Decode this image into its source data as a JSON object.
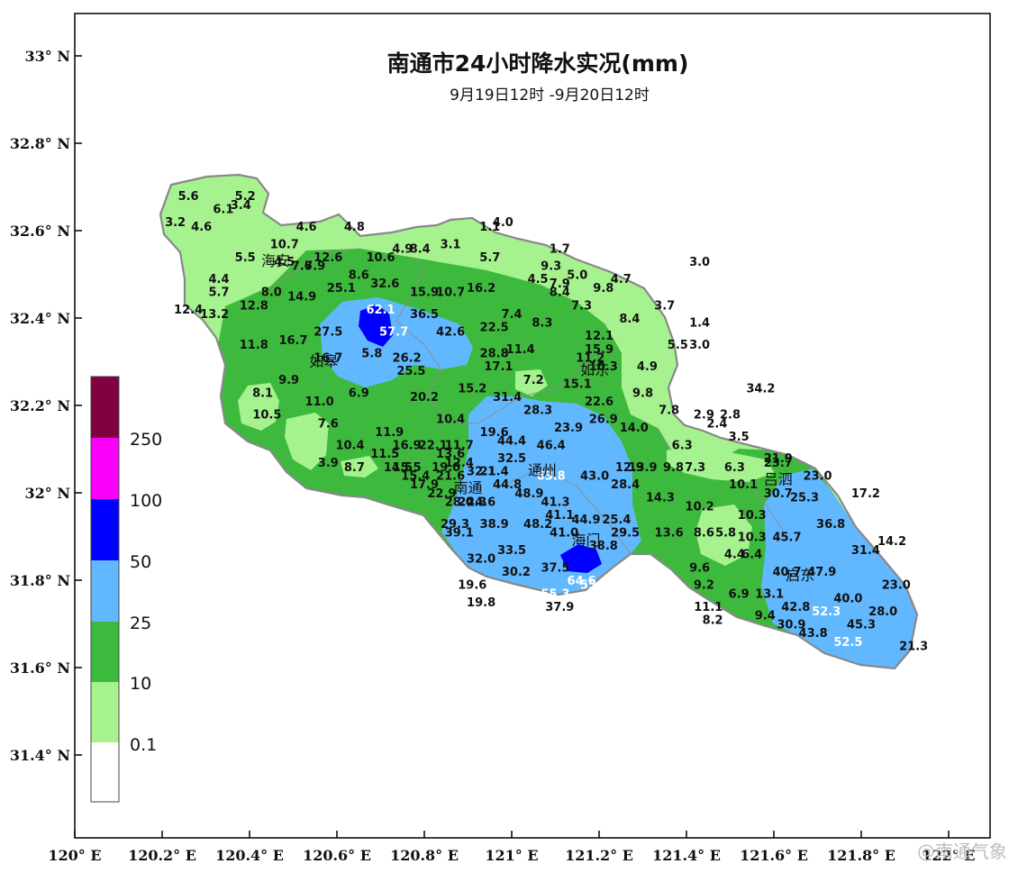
{
  "title": "南通市24小时降水实况(mm)",
  "subtitle": "9月19日12时 -9月20日12时",
  "watermark": "@南通气象",
  "colors": {
    "c0": "#ffffff",
    "c1": "#a6f28f",
    "c2": "#3dba3d",
    "c3": "#61b8ff",
    "c4": "#0000ff",
    "c5": "#fa00fa",
    "c6": "#800040",
    "outline": "#888888"
  },
  "axes": {
    "x_ticks": [
      "120° E",
      "120.2° E",
      "120.4° E",
      "120.6° E",
      "120.8° E",
      "121° E",
      "121.2° E",
      "121.4° E",
      "121.6° E",
      "121.8° E",
      "122° E"
    ],
    "y_ticks": [
      "33° N",
      "32.8° N",
      "32.6° N",
      "32.4° N",
      "32.2° N",
      "32° N",
      "31.8° N",
      "31.6° N",
      "31.4° N"
    ]
  },
  "legend": {
    "labels": [
      "0.1",
      "10",
      "25",
      "50",
      "100",
      "250"
    ]
  },
  "cities": [
    {
      "name": "海安",
      "lon": 120.46,
      "lat": 32.52
    },
    {
      "name": "如皋",
      "lon": 120.57,
      "lat": 32.29
    },
    {
      "name": "如东",
      "lon": 121.19,
      "lat": 32.27
    },
    {
      "name": "通州",
      "lon": 121.07,
      "lat": 32.04
    },
    {
      "name": "南通",
      "lon": 120.9,
      "lat": 32.0
    },
    {
      "name": "海门",
      "lon": 121.17,
      "lat": 31.88
    },
    {
      "name": "吕泗",
      "lon": 121.61,
      "lat": 32.02
    },
    {
      "name": "启东",
      "lon": 121.66,
      "lat": 31.8
    }
  ],
  "stations": [
    [
      "5.6",
      120.26,
      32.67
    ],
    [
      "5.2",
      120.39,
      32.67
    ],
    [
      "3.4",
      120.38,
      32.65
    ],
    [
      "6.1",
      120.34,
      32.64
    ],
    [
      "3.2",
      120.23,
      32.61
    ],
    [
      "4.6",
      120.29,
      32.6
    ],
    [
      "4.6",
      120.53,
      32.6
    ],
    [
      "4.8",
      120.64,
      32.6
    ],
    [
      "4.0",
      120.98,
      32.61
    ],
    [
      "1.1",
      120.95,
      32.6
    ],
    [
      "1.7",
      121.11,
      32.55
    ],
    [
      "3.0",
      121.43,
      32.52
    ],
    [
      "10.7",
      120.48,
      32.56
    ],
    [
      "5.5",
      120.39,
      32.53
    ],
    [
      "4.5",
      120.48,
      32.52
    ],
    [
      "7.6",
      120.52,
      32.51
    ],
    [
      "7.9",
      120.55,
      32.51
    ],
    [
      "12.6",
      120.58,
      32.53
    ],
    [
      "10.6",
      120.7,
      32.53
    ],
    [
      "4.9",
      120.75,
      32.55
    ],
    [
      "8.4",
      120.79,
      32.55
    ],
    [
      "3.1",
      120.86,
      32.56
    ],
    [
      "5.7",
      120.95,
      32.53
    ],
    [
      "9.3",
      121.09,
      32.51
    ],
    [
      "4.4",
      120.33,
      32.48
    ],
    [
      "8.6",
      120.65,
      32.49
    ],
    [
      "5.0",
      121.15,
      32.49
    ],
    [
      "4.5",
      121.06,
      32.48
    ],
    [
      "7.9",
      121.11,
      32.47
    ],
    [
      "9.8",
      121.21,
      32.46
    ],
    [
      "4.7",
      121.25,
      32.48
    ],
    [
      "5.7",
      120.33,
      32.45
    ],
    [
      "8.0",
      120.45,
      32.45
    ],
    [
      "14.9",
      120.52,
      32.44
    ],
    [
      "25.1",
      120.61,
      32.46
    ],
    [
      "32.6",
      120.71,
      32.47
    ],
    [
      "15.9",
      120.8,
      32.45
    ],
    [
      "10.7",
      120.86,
      32.45
    ],
    [
      "16.2",
      120.93,
      32.46
    ],
    [
      "8.4",
      121.11,
      32.45
    ],
    [
      "12.4",
      120.26,
      32.41
    ],
    [
      "13.2",
      120.32,
      32.4
    ],
    [
      "12.8",
      120.41,
      32.42
    ],
    [
      "62.1",
      120.7,
      32.41,
      "w"
    ],
    [
      "36.5",
      120.8,
      32.4
    ],
    [
      "7.4",
      121.0,
      32.4
    ],
    [
      "7.3",
      121.16,
      32.42
    ],
    [
      "3.7",
      121.35,
      32.42
    ],
    [
      "8.3",
      121.07,
      32.38
    ],
    [
      "8.4",
      121.27,
      32.39
    ],
    [
      "1.4",
      121.43,
      32.38
    ],
    [
      "27.5",
      120.58,
      32.36
    ],
    [
      "57.7",
      120.73,
      32.36,
      "w"
    ],
    [
      "42.6",
      120.86,
      32.36
    ],
    [
      "22.5",
      120.96,
      32.37
    ],
    [
      "12.1",
      121.2,
      32.35
    ],
    [
      "11.8",
      120.41,
      32.33
    ],
    [
      "16.7",
      120.5,
      32.34
    ],
    [
      "5.5",
      121.38,
      32.33
    ],
    [
      "3.0",
      121.43,
      32.33
    ],
    [
      "15.9",
      121.2,
      32.32
    ],
    [
      "16.7",
      120.58,
      32.3
    ],
    [
      "5.8",
      120.68,
      32.31
    ],
    [
      "26.2",
      120.76,
      32.3
    ],
    [
      "28.8",
      120.96,
      32.31
    ],
    [
      "11.4",
      121.02,
      32.32
    ],
    [
      "11.2",
      121.18,
      32.3
    ],
    [
      "17.1",
      120.97,
      32.28
    ],
    [
      "10.3",
      121.21,
      32.28
    ],
    [
      "4.9",
      121.31,
      32.28
    ],
    [
      "25.5",
      120.77,
      32.27
    ],
    [
      "9.9",
      120.49,
      32.25
    ],
    [
      "7.2",
      121.05,
      32.25
    ],
    [
      "15.1",
      121.15,
      32.24
    ],
    [
      "34.2",
      121.57,
      32.23
    ],
    [
      "8.1",
      120.43,
      32.22
    ],
    [
      "6.9",
      120.65,
      32.22
    ],
    [
      "15.2",
      120.91,
      32.23
    ],
    [
      "9.8",
      121.3,
      32.22
    ],
    [
      "11.0",
      120.56,
      32.2
    ],
    [
      "20.2",
      120.8,
      32.21
    ],
    [
      "31.4",
      120.99,
      32.21
    ],
    [
      "22.6",
      121.2,
      32.2
    ],
    [
      "7.8",
      121.36,
      32.18
    ],
    [
      "28.3",
      121.06,
      32.18
    ],
    [
      "2.9",
      121.44,
      32.17
    ],
    [
      "2.8",
      121.5,
      32.17
    ],
    [
      "10.5",
      120.44,
      32.17
    ],
    [
      "10.4",
      120.86,
      32.16
    ],
    [
      "26.9",
      121.21,
      32.16
    ],
    [
      "2.4",
      121.47,
      32.15
    ],
    [
      "7.6",
      120.58,
      32.15
    ],
    [
      "14.0",
      121.28,
      32.14
    ],
    [
      "23.9",
      121.13,
      32.14
    ],
    [
      "19.6",
      120.96,
      32.13
    ],
    [
      "3.5",
      121.52,
      32.12
    ],
    [
      "11.9",
      120.72,
      32.13
    ],
    [
      "44.4",
      121.0,
      32.11
    ],
    [
      "46.4",
      121.09,
      32.1
    ],
    [
      "16.9",
      120.76,
      32.1
    ],
    [
      "22.1",
      120.82,
      32.1
    ],
    [
      "11.7",
      120.88,
      32.1
    ],
    [
      "6.3",
      121.39,
      32.1
    ],
    [
      "10.4",
      120.63,
      32.1
    ],
    [
      "13.6",
      120.86,
      32.08
    ],
    [
      "11.5",
      120.71,
      32.08
    ],
    [
      "32.5",
      121.0,
      32.07
    ],
    [
      "21.9",
      121.61,
      32.07
    ],
    [
      "3.9",
      120.58,
      32.06
    ],
    [
      "19.0",
      120.85,
      32.05
    ],
    [
      "12.4",
      120.88,
      32.06
    ],
    [
      "12.9",
      121.27,
      32.05
    ],
    [
      "13.9",
      121.3,
      32.05
    ],
    [
      "9.8",
      121.37,
      32.05
    ],
    [
      "7.3",
      121.42,
      32.05
    ],
    [
      "6.3",
      121.51,
      32.05
    ],
    [
      "8.7",
      120.64,
      32.05
    ],
    [
      "14.5",
      120.74,
      32.05
    ],
    [
      "15.5",
      120.76,
      32.05
    ],
    [
      "23.7",
      121.61,
      32.06
    ],
    [
      "15.4",
      120.78,
      32.03
    ],
    [
      "21.6",
      120.86,
      32.03
    ],
    [
      "32.1",
      120.93,
      32.04
    ],
    [
      "21.4",
      120.96,
      32.04
    ],
    [
      "23.0",
      121.7,
      32.03
    ],
    [
      "43.0",
      121.19,
      32.03
    ],
    [
      "63.8",
      121.09,
      32.03,
      "w"
    ],
    [
      "17.9",
      120.8,
      32.01
    ],
    [
      "44.8",
      120.99,
      32.01
    ],
    [
      "28.4",
      121.26,
      32.01
    ],
    [
      "10.1",
      121.53,
      32.01
    ],
    [
      "30.7",
      121.61,
      31.99
    ],
    [
      "22.9",
      120.84,
      31.99
    ],
    [
      "48.9",
      121.04,
      31.99
    ],
    [
      "17.2",
      121.81,
      31.99
    ],
    [
      "24.3",
      120.91,
      31.97
    ],
    [
      "28.0",
      120.88,
      31.97
    ],
    [
      "24.6",
      120.93,
      31.97
    ],
    [
      "41.3",
      121.1,
      31.97
    ],
    [
      "14.3",
      121.34,
      31.98
    ],
    [
      "25.3",
      121.67,
      31.98
    ],
    [
      "41.1",
      121.11,
      31.94
    ],
    [
      "10.2",
      121.43,
      31.96
    ],
    [
      "10.3",
      121.55,
      31.94
    ],
    [
      "29.3",
      120.87,
      31.92
    ],
    [
      "38.9",
      120.96,
      31.92
    ],
    [
      "48.2",
      121.06,
      31.92
    ],
    [
      "44.9",
      121.17,
      31.93
    ],
    [
      "25.4",
      121.24,
      31.93
    ],
    [
      "36.8",
      121.73,
      31.92
    ],
    [
      "39.1",
      120.88,
      31.9
    ],
    [
      "41.0",
      121.12,
      31.9
    ],
    [
      "29.5",
      121.26,
      31.9
    ],
    [
      "13.6",
      121.36,
      31.9
    ],
    [
      "8.6",
      121.44,
      31.9
    ],
    [
      "5.8",
      121.49,
      31.9
    ],
    [
      "45.7",
      121.63,
      31.89
    ],
    [
      "10.3",
      121.55,
      31.89
    ],
    [
      "14.2",
      121.87,
      31.88
    ],
    [
      "38.8",
      121.21,
      31.87
    ],
    [
      "33.5",
      121.0,
      31.86
    ],
    [
      "31.4",
      121.81,
      31.86
    ],
    [
      "32.0",
      120.93,
      31.84
    ],
    [
      "4.4",
      121.51,
      31.85
    ],
    [
      "6.4",
      121.55,
      31.85
    ],
    [
      "37.5",
      121.1,
      31.82
    ],
    [
      "30.2",
      121.01,
      31.81
    ],
    [
      "40.7",
      121.63,
      31.81
    ],
    [
      "47.9",
      121.71,
      31.81
    ],
    [
      "9.6",
      121.43,
      31.82
    ],
    [
      "64.6",
      121.16,
      31.79,
      "w"
    ],
    [
      "55.4",
      121.19,
      31.78,
      "w"
    ],
    [
      "19.6",
      120.91,
      31.78
    ],
    [
      "23.0",
      121.88,
      31.78
    ],
    [
      "9.2",
      121.44,
      31.78
    ],
    [
      "6.9",
      121.52,
      31.76
    ],
    [
      "13.1",
      121.59,
      31.76
    ],
    [
      "55.3",
      121.1,
      31.76,
      "w"
    ],
    [
      "40.0",
      121.77,
      31.75
    ],
    [
      "19.8",
      120.93,
      31.74
    ],
    [
      "37.9",
      121.11,
      31.73
    ],
    [
      "11.1",
      121.45,
      31.73
    ],
    [
      "42.8",
      121.65,
      31.73
    ],
    [
      "52.3",
      121.72,
      31.72,
      "w"
    ],
    [
      "28.0",
      121.85,
      31.72
    ],
    [
      "9.4",
      121.58,
      31.71
    ],
    [
      "8.2",
      121.46,
      31.7
    ],
    [
      "30.9",
      121.64,
      31.69
    ],
    [
      "45.3",
      121.8,
      31.69
    ],
    [
      "43.8",
      121.69,
      31.67
    ],
    [
      "52.5",
      121.77,
      31.65,
      "w"
    ],
    [
      "21.3",
      121.92,
      31.64
    ]
  ]
}
